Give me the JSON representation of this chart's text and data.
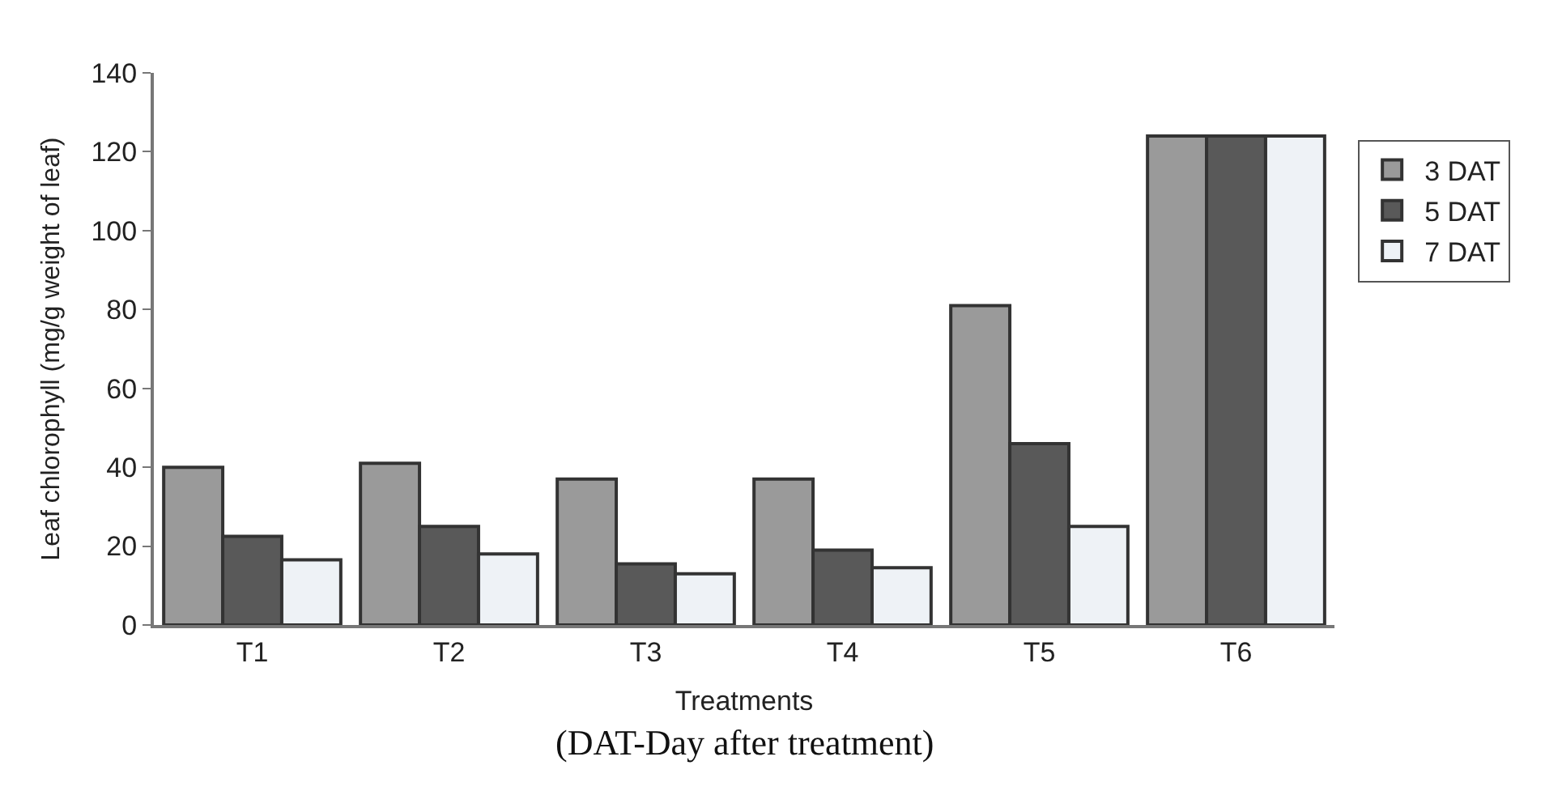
{
  "chart_data": {
    "type": "bar",
    "xlabel": "Treatments",
    "ylabel": "Leaf chlorophyll (mg/g weight of leaf)",
    "categories": [
      "T1",
      "T2",
      "T3",
      "T4",
      "T5",
      "T6"
    ],
    "series": [
      {
        "name": "3 DAT",
        "color": "#9a9a9a",
        "values": [
          40,
          41,
          37,
          37,
          81,
          124
        ]
      },
      {
        "name": "5 DAT",
        "color": "#595959",
        "values": [
          22.5,
          25,
          15.5,
          19,
          46,
          124
        ]
      },
      {
        "name": "7 DAT",
        "color": "#eef2f6",
        "values": [
          16.5,
          18,
          13,
          14.5,
          25,
          124
        ]
      }
    ],
    "ylim": [
      0,
      140
    ],
    "yticks": [
      0,
      20,
      40,
      60,
      80,
      100,
      120,
      140
    ],
    "grid": false,
    "legend": "right",
    "annotations": [
      "(DAT-Day after treatment)"
    ]
  }
}
